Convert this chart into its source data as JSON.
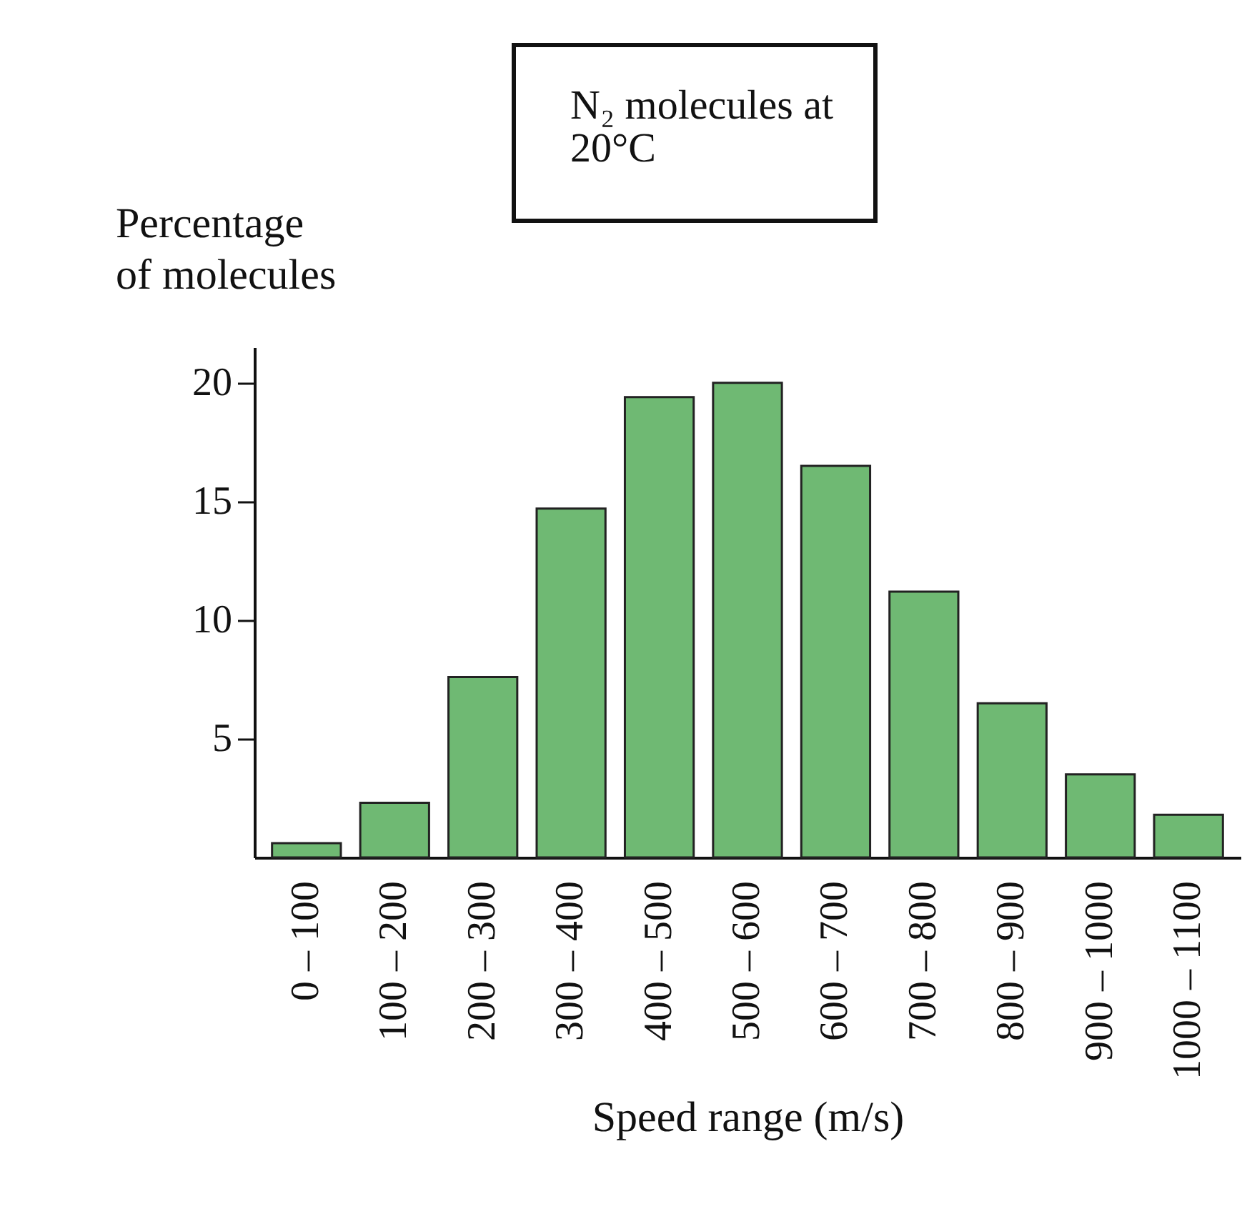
{
  "chart_data": {
    "type": "bar",
    "ylabel": "Percentage\nof molecules",
    "xlabel": "Speed range (m/s)",
    "annotations": [
      "N₂ molecules at 20°C"
    ],
    "categories": [
      "0 – 100",
      "100 – 200",
      "200 – 300",
      "300 – 400",
      "400 – 500",
      "500 – 600",
      "600 – 700",
      "700 – 800",
      "800 – 900",
      "900 – 1000",
      "1000 – 1100"
    ],
    "values": [
      0.6,
      2.3,
      7.6,
      14.7,
      19.4,
      20.0,
      16.5,
      11.2,
      6.5,
      3.5,
      1.8
    ],
    "color": "#6fb973",
    "ylim": [
      0,
      21.5
    ],
    "yticks": [
      5,
      10,
      15,
      20
    ],
    "grid": false
  }
}
